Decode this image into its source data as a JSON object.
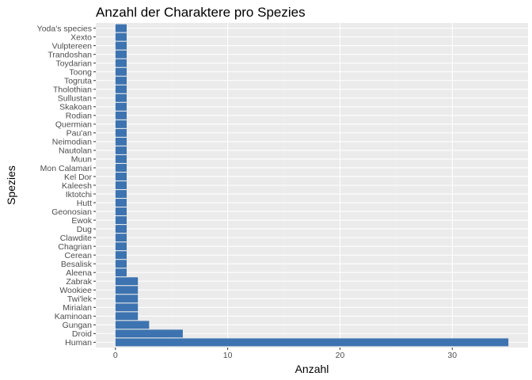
{
  "chart_data": {
    "type": "bar",
    "orientation": "horizontal",
    "title": "Anzahl der Charaktere pro Spezies",
    "xlabel": "Anzahl",
    "ylabel": "Spezies",
    "xlim": [
      0,
      35
    ],
    "xticks": [
      0,
      10,
      20,
      30
    ],
    "grid": true,
    "categories": [
      "Human",
      "Droid",
      "Gungan",
      "Kaminoan",
      "Mirialan",
      "Twi'lek",
      "Wookiee",
      "Zabrak",
      "Aleena",
      "Besalisk",
      "Cerean",
      "Chagrian",
      "Clawdite",
      "Dug",
      "Ewok",
      "Geonosian",
      "Hutt",
      "Iktotchi",
      "Kaleesh",
      "Kel Dor",
      "Mon Calamari",
      "Muun",
      "Nautolan",
      "Neimodian",
      "Pau'an",
      "Quermian",
      "Rodian",
      "Skakoan",
      "Sullustan",
      "Tholothian",
      "Togruta",
      "Toong",
      "Toydarian",
      "Trandoshan",
      "Vulptereen",
      "Xexto",
      "Yoda's species"
    ],
    "values": [
      35,
      6,
      3,
      2,
      2,
      2,
      2,
      2,
      1,
      1,
      1,
      1,
      1,
      1,
      1,
      1,
      1,
      1,
      1,
      1,
      1,
      1,
      1,
      1,
      1,
      1,
      1,
      1,
      1,
      1,
      1,
      1,
      1,
      1,
      1,
      1,
      1
    ],
    "bar_color": "#3d73b0",
    "panel_background": "#ebebeb"
  }
}
